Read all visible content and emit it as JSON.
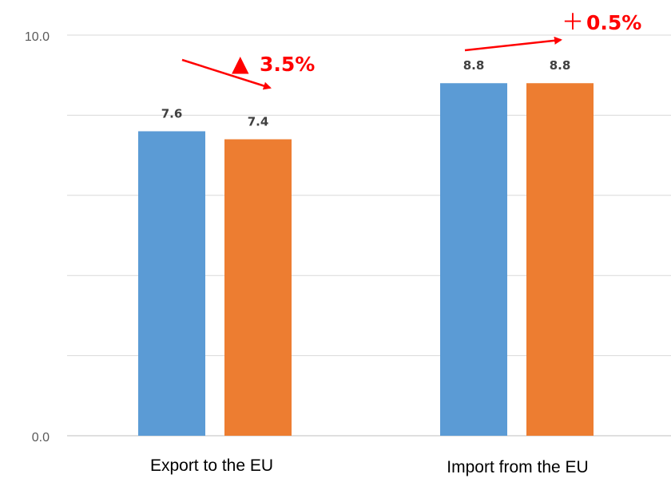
{
  "chart_data": {
    "type": "bar",
    "categories": [
      "Export to the EU",
      "Import from the EU"
    ],
    "series": [
      {
        "values": [
          7.6,
          8.8
        ],
        "color": "#5b9bd5"
      },
      {
        "values": [
          7.4,
          8.8
        ],
        "color": "#ed7d31"
      }
    ],
    "data_labels": [
      [
        "7.6",
        "8.8"
      ],
      [
        "7.4",
        "8.8"
      ]
    ],
    "ylim": [
      0,
      10
    ],
    "yticks": [
      "0.0",
      "10.0"
    ],
    "grid": true,
    "annotations": [
      {
        "symbol": "▲",
        "text": "3.5%",
        "color": "#ff0000",
        "arrow_direction": "down"
      },
      {
        "symbol": "＋",
        "text": "0.5%",
        "color": "#ff0000",
        "arrow_direction": "up"
      }
    ]
  }
}
